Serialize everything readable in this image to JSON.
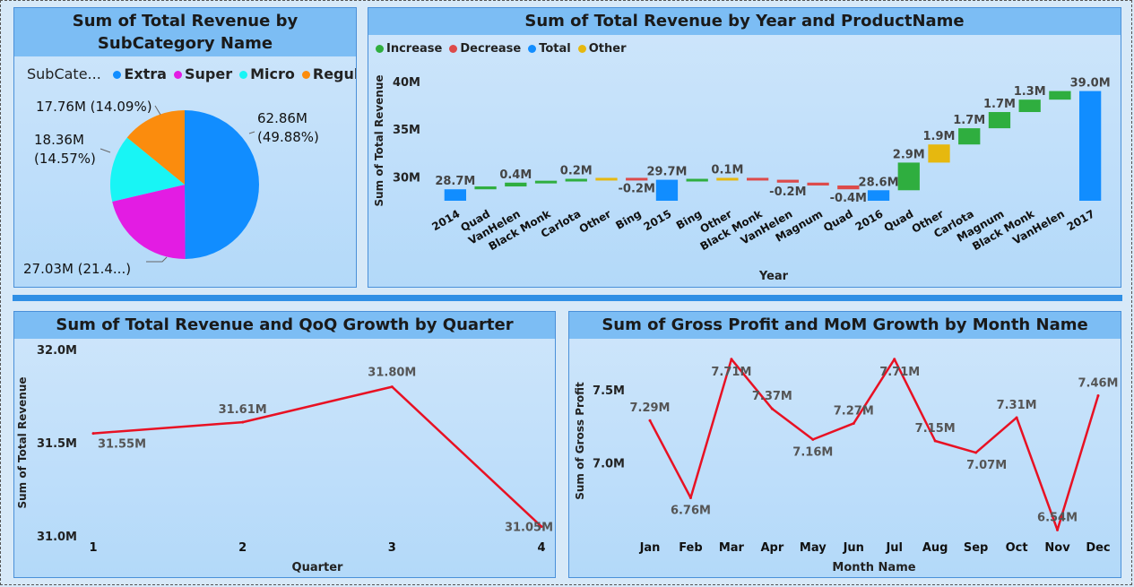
{
  "pie": {
    "title": "Sum of Total Revenue by SubCategory Name",
    "legend_label": "SubCate...",
    "chart_data": {
      "type": "pie",
      "title": "Sum of Total Revenue by SubCategory Name",
      "slices": [
        {
          "name": "Extra",
          "value": 62.86,
          "label": "62.86M",
          "pct": "(49.88%)",
          "color": "#118dff"
        },
        {
          "name": "Super",
          "value": 27.03,
          "label": "27.03M (21.4...)",
          "pct": "",
          "color": "#e31ce3"
        },
        {
          "name": "Micro",
          "value": 18.36,
          "label": "18.36M",
          "pct": "(14.57%)",
          "color": "#18f5f5"
        },
        {
          "name": "Regular",
          "value": 17.76,
          "label": "17.76M (14.09%)",
          "pct": "",
          "color": "#fb8c0d"
        }
      ]
    }
  },
  "waterfall": {
    "title": "Sum of Total Revenue by Year and ProductName",
    "legend": [
      {
        "name": "Increase",
        "color": "#2fae3f"
      },
      {
        "name": "Decrease",
        "color": "#dd4a4a"
      },
      {
        "name": "Total",
        "color": "#118dff"
      },
      {
        "name": "Other",
        "color": "#e6b80f"
      }
    ],
    "chart_data": {
      "type": "bar",
      "subtype": "waterfall",
      "title": "Sum of Total Revenue by Year and ProductName",
      "xlabel": "Year",
      "ylabel": "Sum of Total Revenue",
      "ylim": [
        27.5,
        41.5
      ],
      "yticks": [
        {
          "v": 30,
          "label": "30M"
        },
        {
          "v": 35,
          "label": "35M"
        },
        {
          "v": 40,
          "label": "40M"
        }
      ],
      "bars": [
        {
          "cat": "2014",
          "kind": "total",
          "start": 0,
          "end": 28.7,
          "label": "28.7M"
        },
        {
          "cat": "Quad",
          "kind": "increase",
          "start": 28.7,
          "end": 29.0,
          "label": ""
        },
        {
          "cat": "VanHelen",
          "kind": "increase",
          "start": 29.0,
          "end": 29.4,
          "label": "0.4M"
        },
        {
          "cat": "Black Monk",
          "kind": "increase",
          "start": 29.4,
          "end": 29.6,
          "label": ""
        },
        {
          "cat": "Carlota",
          "kind": "increase",
          "start": 29.6,
          "end": 29.8,
          "label": "0.2M"
        },
        {
          "cat": "Other",
          "kind": "other",
          "start": 29.8,
          "end": 29.9,
          "label": ""
        },
        {
          "cat": "Bing",
          "kind": "decrease",
          "start": 29.9,
          "end": 29.7,
          "label": "-0.2M"
        },
        {
          "cat": "2015",
          "kind": "total",
          "start": 0,
          "end": 29.7,
          "label": "29.7M"
        },
        {
          "cat": "Bing",
          "kind": "increase",
          "start": 29.7,
          "end": 29.8,
          "label": ""
        },
        {
          "cat": "Other",
          "kind": "other",
          "start": 29.8,
          "end": 29.9,
          "label": "0.1M"
        },
        {
          "cat": "Black Monk",
          "kind": "decrease",
          "start": 29.9,
          "end": 29.7,
          "label": ""
        },
        {
          "cat": "VanHelen",
          "kind": "decrease",
          "start": 29.7,
          "end": 29.4,
          "label": "-0.2M"
        },
        {
          "cat": "Magnum",
          "kind": "decrease",
          "start": 29.4,
          "end": 29.1,
          "label": ""
        },
        {
          "cat": "Quad",
          "kind": "decrease",
          "start": 29.1,
          "end": 28.7,
          "label": "-0.4M"
        },
        {
          "cat": "2016",
          "kind": "total",
          "start": 0,
          "end": 28.6,
          "label": "28.6M"
        },
        {
          "cat": "Quad",
          "kind": "increase",
          "start": 28.6,
          "end": 31.5,
          "label": "2.9M"
        },
        {
          "cat": "Other",
          "kind": "other",
          "start": 31.5,
          "end": 33.4,
          "label": "1.9M"
        },
        {
          "cat": "Carlota",
          "kind": "increase",
          "start": 33.4,
          "end": 35.1,
          "label": "1.7M"
        },
        {
          "cat": "Magnum",
          "kind": "increase",
          "start": 35.1,
          "end": 36.8,
          "label": "1.7M"
        },
        {
          "cat": "Black Monk",
          "kind": "increase",
          "start": 36.8,
          "end": 38.1,
          "label": "1.3M"
        },
        {
          "cat": "VanHelen",
          "kind": "increase",
          "start": 38.1,
          "end": 39.0,
          "label": ""
        },
        {
          "cat": "2017",
          "kind": "total",
          "start": 0,
          "end": 39.0,
          "label": "39.0M"
        }
      ]
    }
  },
  "quarter": {
    "title": "Sum of Total Revenue and QoQ Growth by Quarter",
    "chart_data": {
      "type": "line",
      "title": "Sum of Total Revenue and QoQ Growth by Quarter",
      "xlabel": "Quarter",
      "ylabel": "Sum of Total Revenue",
      "ylim": [
        31.0,
        32.0
      ],
      "yticks": [
        {
          "v": 31.0,
          "label": "31.0M"
        },
        {
          "v": 31.5,
          "label": "31.5M"
        },
        {
          "v": 32.0,
          "label": "32.0M"
        }
      ],
      "categories": [
        "1",
        "2",
        "3",
        "4"
      ],
      "values": [
        31.55,
        31.61,
        31.8,
        31.05
      ],
      "labels": [
        "31.55M",
        "31.61M",
        "31.80M",
        "31.05M"
      ],
      "color": "#e81123"
    }
  },
  "month": {
    "title": "Sum of Gross Profit and MoM Growth by Month Name",
    "chart_data": {
      "type": "line",
      "title": "Sum of Gross Profit and MoM Growth by Month Name",
      "xlabel": "Month Name",
      "ylabel": "Sum of Gross Profit",
      "ylim": [
        6.45,
        7.85
      ],
      "yticks": [
        {
          "v": 7.0,
          "label": "7.0M"
        },
        {
          "v": 7.5,
          "label": "7.5M"
        }
      ],
      "categories": [
        "Jan",
        "Feb",
        "Mar",
        "Apr",
        "May",
        "Jun",
        "Jul",
        "Aug",
        "Sep",
        "Oct",
        "Nov",
        "Dec"
      ],
      "values": [
        7.29,
        6.76,
        7.71,
        7.37,
        7.16,
        7.27,
        7.71,
        7.15,
        7.07,
        7.31,
        6.54,
        7.46
      ],
      "labels": [
        "7.29M",
        "6.76M",
        "7.71M",
        "7.37M",
        "7.16M",
        "7.27M",
        "7.71M",
        "7.15M",
        "7.07M",
        "7.31M",
        "6.54M",
        "7.46M"
      ],
      "color": "#e81123"
    }
  }
}
